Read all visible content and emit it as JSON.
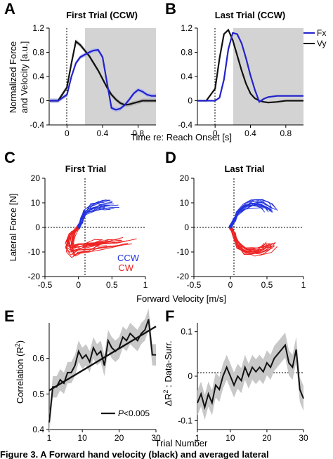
{
  "colors": {
    "fx": "#2222cc",
    "vy": "#111111",
    "ccw": "#2233dd",
    "cw": "#ee2222",
    "shade": "#d3d3d3",
    "band": "#aaaaaa"
  },
  "panels": {
    "A": {
      "letter": "A",
      "title": "First Trial (CCW)",
      "ylabel1": "Normalized Force",
      "ylabel2": "and Velocity [a.u.]"
    },
    "B": {
      "letter": "B",
      "title": "Last Trial (CCW)"
    },
    "C": {
      "letter": "C",
      "title": "First Trial",
      "ylabel": "Lateral Force [N]"
    },
    "D": {
      "letter": "D",
      "title": "Last Trial"
    },
    "E": {
      "letter": "E",
      "ylabel": "Correlation (R",
      "ylabel_sup": "2",
      "ylabel_end": ")",
      "legend_p": "P",
      "legend_rest": "<0.005"
    },
    "F": {
      "letter": "F",
      "ylabel_pre": "ΔR",
      "ylabel_sup": "2",
      "ylabel_post": " : Data-Surr."
    }
  },
  "shared": {
    "time_xlabel": "Time re: Reach Onset [s]",
    "velocity_xlabel": "Forward Velocity [m/s]",
    "trial_xlabel": "Trial Number",
    "legend_fx": "Fx",
    "legend_vy": "Vy",
    "legend_ccw": "CCW",
    "legend_cw": "CW"
  },
  "caption_fragment": "Figure 3. A  Forward hand velocity (black) and averaged lateral",
  "chart_data": [
    {
      "panel": "A",
      "type": "line",
      "xlim": [
        -0.2,
        1.0
      ],
      "ylim": [
        -0.4,
        1.2
      ],
      "xticks": [
        "0",
        "0.4",
        "0.8"
      ],
      "yticks": [
        "-0.4",
        "0",
        "0.4",
        "0.8",
        "1.2"
      ],
      "shaded_x_from": 0.2,
      "series": [
        {
          "name": "Fx",
          "x": [
            -0.2,
            -0.1,
            0,
            0.05,
            0.1,
            0.15,
            0.2,
            0.25,
            0.3,
            0.35,
            0.4,
            0.45,
            0.5,
            0.55,
            0.6,
            0.65,
            0.7,
            0.75,
            0.8,
            0.85,
            0.9,
            0.95,
            1.0
          ],
          "y": [
            0,
            0,
            0.1,
            0.4,
            0.62,
            0.72,
            0.76,
            0.8,
            0.83,
            0.84,
            0.72,
            0.3,
            -0.12,
            -0.15,
            -0.13,
            -0.07,
            0.02,
            0.12,
            0.18,
            0.15,
            0.1,
            0.08,
            0.08
          ]
        },
        {
          "name": "Vy",
          "x": [
            -0.2,
            -0.1,
            0,
            0.05,
            0.1,
            0.15,
            0.2,
            0.25,
            0.3,
            0.35,
            0.4,
            0.45,
            0.5,
            0.55,
            0.6,
            0.65,
            0.7,
            0.75,
            0.8,
            0.85,
            0.9,
            0.95,
            1.0
          ],
          "y": [
            0,
            0,
            0.22,
            0.62,
            0.98,
            0.92,
            0.83,
            0.74,
            0.62,
            0.5,
            0.36,
            0.22,
            0.1,
            0.02,
            -0.04,
            -0.07,
            -0.06,
            -0.04,
            -0.02,
            0,
            0,
            0,
            0
          ]
        }
      ]
    },
    {
      "panel": "B",
      "type": "line",
      "xlim": [
        -0.2,
        1.0
      ],
      "ylim": [
        -0.4,
        1.2
      ],
      "xticks": [
        "0",
        "0.4",
        "0.8"
      ],
      "yticks": [
        "-0.4",
        "0",
        "0.4",
        "0.8",
        "1.2"
      ],
      "shaded_x_from": 0.2,
      "series": [
        {
          "name": "Fx",
          "x": [
            -0.2,
            -0.1,
            0,
            0.05,
            0.1,
            0.15,
            0.2,
            0.25,
            0.3,
            0.35,
            0.4,
            0.45,
            0.5,
            0.55,
            0.6,
            0.7,
            0.8,
            0.9,
            1.0
          ],
          "y": [
            0,
            0,
            0,
            0.05,
            0.35,
            0.85,
            1.12,
            1.1,
            0.95,
            0.7,
            0.42,
            0.18,
            -0.02,
            0.03,
            0.06,
            0.08,
            0.08,
            0.08,
            0.08
          ]
        },
        {
          "name": "Vy",
          "x": [
            -0.2,
            -0.1,
            0,
            0.05,
            0.1,
            0.15,
            0.2,
            0.25,
            0.3,
            0.35,
            0.4,
            0.45,
            0.5,
            0.55,
            0.6,
            0.7,
            0.8,
            0.9,
            1.0
          ],
          "y": [
            0,
            0,
            0.2,
            0.7,
            1.1,
            1.17,
            1.0,
            0.75,
            0.5,
            0.28,
            0.12,
            0.04,
            0,
            -0.02,
            -0.03,
            -0.02,
            0,
            0,
            0
          ]
        }
      ]
    },
    {
      "panel": "C",
      "type": "line",
      "xlim": [
        -0.5,
        1.0
      ],
      "ylim": [
        -20,
        20
      ],
      "xticks": [
        "-0.5",
        "0",
        "0.5",
        "1"
      ],
      "yticks": [
        "-20",
        "-10",
        "0",
        "10",
        "20"
      ],
      "series": [
        {
          "name": "CCW",
          "x": [
            0,
            0.05,
            0.1,
            0.2,
            0.3,
            0.4,
            0.5
          ],
          "y": [
            0,
            3,
            6,
            8,
            9,
            9.5,
            9
          ]
        },
        {
          "name": "CW",
          "x": [
            0,
            -0.1,
            -0.15,
            -0.1,
            0,
            0.2,
            0.4,
            0.6
          ],
          "y": [
            0,
            -3,
            -8,
            -10,
            -9,
            -8,
            -7,
            -6
          ]
        }
      ]
    },
    {
      "panel": "D",
      "type": "line",
      "xlim": [
        -0.5,
        1.0
      ],
      "ylim": [
        -20,
        20
      ],
      "xticks": [
        "-0.5",
        "0",
        "0.5",
        "1"
      ],
      "yticks": [
        "-20",
        "-10",
        "0",
        "10",
        "20"
      ],
      "series": [
        {
          "name": "CCW",
          "x": [
            0,
            0.05,
            0.1,
            0.2,
            0.3,
            0.4,
            0.5,
            0.55
          ],
          "y": [
            0,
            3,
            6,
            8.5,
            9.5,
            9.5,
            8.5,
            7
          ]
        },
        {
          "name": "CW",
          "x": [
            0,
            0.05,
            0.1,
            0.2,
            0.3,
            0.4,
            0.5,
            0.55
          ],
          "y": [
            0,
            -3,
            -7,
            -9.5,
            -10,
            -9.5,
            -8.5,
            -7
          ]
        }
      ]
    },
    {
      "panel": "E",
      "type": "line",
      "xlim": [
        1,
        30
      ],
      "ylim": [
        0.4,
        0.7
      ],
      "xticks": [
        "1",
        "10",
        "20",
        "30"
      ],
      "yticks": [
        "0.4",
        "0.5",
        "0.6"
      ],
      "series": [
        {
          "x": [
            1,
            2,
            3,
            4,
            5,
            6,
            7,
            8,
            9,
            10,
            11,
            12,
            13,
            14,
            15,
            16,
            17,
            18,
            19,
            20,
            21,
            22,
            23,
            24,
            25,
            26,
            27,
            28,
            29,
            30
          ],
          "y": [
            0.42,
            0.52,
            0.52,
            0.54,
            0.53,
            0.56,
            0.56,
            0.58,
            0.62,
            0.6,
            0.61,
            0.59,
            0.63,
            0.61,
            0.62,
            0.58,
            0.65,
            0.63,
            0.62,
            0.63,
            0.66,
            0.65,
            0.67,
            0.66,
            0.65,
            0.67,
            0.68,
            0.71,
            0.61,
            0.61
          ]
        },
        {
          "name": "fit",
          "x": [
            1,
            30
          ],
          "y": [
            0.51,
            0.69
          ]
        }
      ]
    },
    {
      "panel": "F",
      "type": "line",
      "xlim": [
        1,
        30
      ],
      "ylim": [
        -0.12,
        0.12
      ],
      "xticks": [
        "1",
        "10",
        "20",
        "30"
      ],
      "yticks": [
        "-0.1",
        "0",
        "0.1"
      ],
      "series": [
        {
          "x": [
            1,
            2,
            3,
            4,
            5,
            6,
            7,
            8,
            9,
            10,
            11,
            12,
            13,
            14,
            15,
            16,
            17,
            18,
            19,
            20,
            21,
            22,
            23,
            24,
            25,
            26,
            27,
            28,
            29,
            30
          ],
          "y": [
            -0.06,
            -0.04,
            -0.07,
            -0.04,
            -0.06,
            -0.02,
            -0.03,
            0.0,
            0.02,
            0.0,
            -0.02,
            0.0,
            -0.01,
            0.02,
            0.0,
            0.02,
            0.01,
            0.02,
            0.01,
            0.03,
            0.02,
            0.04,
            0.05,
            0.06,
            0.07,
            0.03,
            0.02,
            0.06,
            -0.03,
            -0.05
          ]
        }
      ]
    }
  ]
}
